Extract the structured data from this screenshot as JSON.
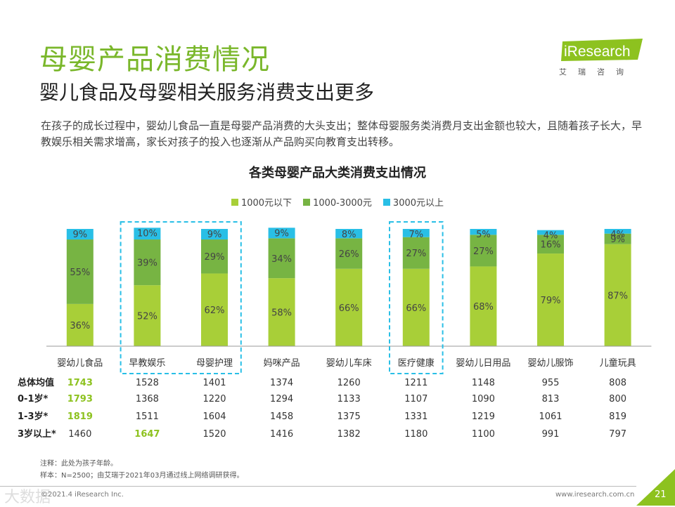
{
  "header": {
    "title": "母婴产品消费情况",
    "subtitle": "婴儿食品及母婴相关服务消费支出更多",
    "description": "在孩子的成长过程中，婴幼儿食品一直是母婴产品消费的大头支出；整体母婴服务类消费月支出金额也较大，且随着孩子长大，早教娱乐相关需求增高，家长对孩子的投入也逐渐从产品购买向教育支出转移。"
  },
  "logo": {
    "brand": "iResearch",
    "cn": "艾瑞咨询"
  },
  "colors": {
    "light_green": "#a8cf38",
    "green": "#77b443",
    "blue": "#29bfe6",
    "dash": "#29bfe6",
    "title_green": "#7ab72b",
    "highlight": "#8dc21f"
  },
  "chart_data": {
    "type": "bar",
    "stacked": true,
    "percent": true,
    "title": "各类母婴产品大类消费支出情况",
    "legend_position": "top",
    "categories": [
      "婴幼儿食品",
      "早教娱乐",
      "母婴护理",
      "妈咪产品",
      "婴幼儿车床",
      "医疗健康",
      "婴幼儿日用品",
      "婴幼儿服饰",
      "儿童玩具"
    ],
    "series": [
      {
        "name": "1000元以下",
        "color": "#a8cf38",
        "values": [
          36,
          52,
          62,
          58,
          66,
          66,
          68,
          79,
          87
        ]
      },
      {
        "name": "1000-3000元",
        "color": "#77b443",
        "values": [
          55,
          39,
          29,
          34,
          26,
          27,
          27,
          16,
          9
        ]
      },
      {
        "name": "3000元以上",
        "color": "#29bfe6",
        "values": [
          9,
          10,
          9,
          9,
          8,
          7,
          5,
          4,
          4
        ]
      }
    ],
    "highlighted_categories": [
      "早教娱乐",
      "母婴护理",
      "医疗健康"
    ],
    "ylim": [
      0,
      100
    ]
  },
  "table": {
    "rows": [
      {
        "label": "总体均值",
        "values": [
          "1743",
          "1528",
          "1401",
          "1374",
          "1260",
          "1211",
          "1148",
          "955",
          "808"
        ],
        "highlight": [
          0
        ]
      },
      {
        "label": "0-1岁*",
        "values": [
          "1793",
          "1368",
          "1220",
          "1294",
          "1133",
          "1107",
          "1090",
          "813",
          "800"
        ],
        "highlight": [
          0
        ]
      },
      {
        "label": "1-3岁*",
        "values": [
          "1819",
          "1511",
          "1604",
          "1458",
          "1375",
          "1331",
          "1219",
          "1061",
          "819"
        ],
        "highlight": [
          0
        ]
      },
      {
        "label": "3岁以上*",
        "values": [
          "1460",
          "1647",
          "1520",
          "1416",
          "1382",
          "1180",
          "1100",
          "991",
          "797"
        ],
        "highlight": [
          1
        ]
      }
    ]
  },
  "footer": {
    "note1": "注释：此处为孩子年龄。",
    "note2": "样本：N=2500；由艾瑞于2021年03月通过线上网络调研获得。",
    "copyright": "©2021.4 iResearch Inc.",
    "site": "www.iresearch.com.cn",
    "page": "21",
    "watermark": "大数据"
  }
}
